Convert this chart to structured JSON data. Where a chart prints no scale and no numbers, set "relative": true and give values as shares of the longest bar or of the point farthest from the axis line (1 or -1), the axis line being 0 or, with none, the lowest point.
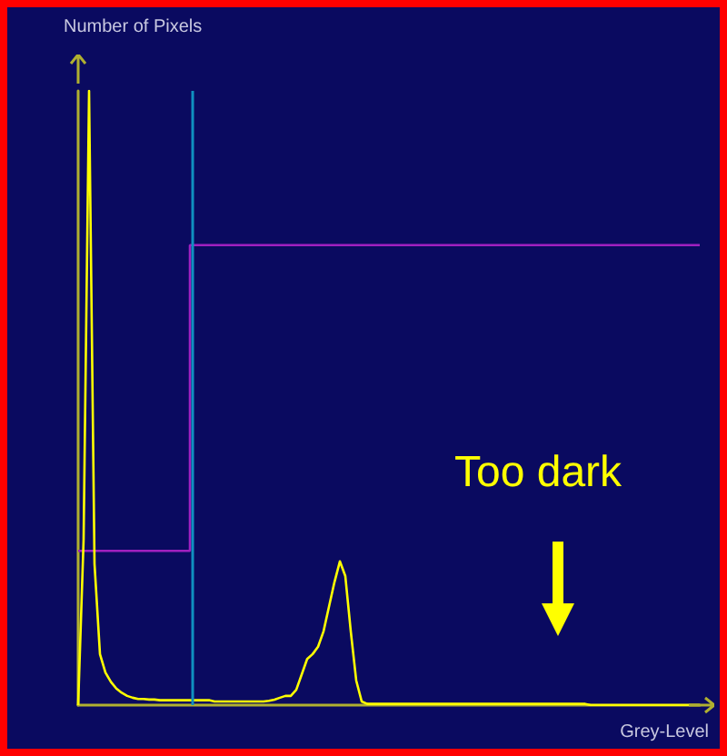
{
  "chart_data": {
    "type": "line",
    "relative": true,
    "xlabel": "Grey-Level",
    "ylabel": "Number of Pixels",
    "annotations": [
      "Too dark"
    ],
    "grid": false,
    "legend": false,
    "categories": [
      null,
      null,
      null,
      null,
      null,
      null,
      null,
      null,
      null,
      null,
      null,
      null,
      null,
      null,
      null,
      null,
      null,
      null,
      null,
      null,
      null,
      null,
      null,
      null,
      null,
      null,
      null,
      null,
      null,
      null,
      null,
      null,
      null,
      null,
      null,
      null,
      null,
      null,
      null,
      null,
      null,
      null,
      null,
      null,
      null,
      null,
      null,
      null,
      null,
      null,
      null,
      null,
      null,
      null,
      null,
      null,
      null,
      null,
      null,
      null,
      null,
      null,
      null,
      null,
      null,
      null,
      null,
      null,
      null,
      null,
      null,
      null,
      null,
      null,
      null,
      null,
      null,
      null,
      null,
      null,
      null,
      null,
      null,
      null,
      null,
      null,
      null,
      null,
      null,
      null,
      null,
      null,
      null,
      null,
      null,
      null,
      null,
      null,
      null,
      null,
      null,
      null,
      null,
      null,
      null,
      null,
      null,
      null,
      null,
      null,
      null,
      null,
      null,
      null,
      null
    ],
    "series": [
      {
        "color": "#ffff00",
        "values": [
          0,
          0.27,
          1,
          0.23,
          0.083,
          0.053,
          0.038,
          0.027,
          0.02,
          0.015,
          0.012,
          0.01,
          0.01,
          0.009,
          0.009,
          0.008,
          0.008,
          0.008,
          0.008,
          0.008,
          0.008,
          0.008,
          0.008,
          0.008,
          0.008,
          0.006,
          0.006,
          0.006,
          0.006,
          0.006,
          0.006,
          0.006,
          0.006,
          0.006,
          0.006,
          0.007,
          0.009,
          0.012,
          0.015,
          0.015,
          0.025,
          0.05,
          0.075,
          0.083,
          0.095,
          0.12,
          0.16,
          0.2,
          0.234,
          0.21,
          0.12,
          0.04,
          0.006,
          0.002,
          0.002,
          0.002,
          0.002,
          0.002,
          0.002,
          0.002,
          0.002,
          0.002,
          0.002,
          0.002,
          0.002,
          0.002,
          0.002,
          0.002,
          0.002,
          0.002,
          0.002,
          0.002,
          0.002,
          0.002,
          0.002,
          0.002,
          0.002,
          0.002,
          0.002,
          0.002,
          0.002,
          0.002,
          0.002,
          0.002,
          0.002,
          0.002,
          0.002,
          0.002,
          0.002,
          0.002,
          0.002,
          0.002,
          0.002,
          0.002,
          0,
          0,
          0,
          0,
          0,
          0,
          0,
          0,
          0,
          0,
          0,
          0,
          0,
          0,
          0,
          0,
          0,
          0,
          0,
          0,
          0
        ]
      },
      {
        "type": "step",
        "color": "#a020c0",
        "values": [
          0.251,
          0.251,
          0.251,
          0.251,
          0.251,
          0.251,
          0.251,
          0.251,
          0.251,
          0.251,
          0.251,
          0.251,
          0.251,
          0.251,
          0.251,
          0.251,
          0.251,
          0.251,
          0.251,
          0.251,
          0.251,
          0.749,
          0.749,
          0.749,
          0.749,
          0.749,
          0.749,
          0.749,
          0.749,
          0.749,
          0.749,
          0.749,
          0.749,
          0.749,
          0.749,
          0.749,
          0.749,
          0.749,
          0.749,
          0.749,
          0.749,
          0.749,
          0.749,
          0.749,
          0.749,
          0.749,
          0.749,
          0.749,
          0.749,
          0.749,
          0.749,
          0.749,
          0.749,
          0.749,
          0.749,
          0.749,
          0.749,
          0.749,
          0.749,
          0.749,
          0.749,
          0.749,
          0.749,
          0.749,
          0.749,
          0.749,
          0.749,
          0.749,
          0.749,
          0.749,
          0.749,
          0.749,
          0.749,
          0.749,
          0.749,
          0.749,
          0.749,
          0.749,
          0.749,
          0.749,
          0.749,
          0.749,
          0.749,
          0.749,
          0.749,
          0.749,
          0.749,
          0.749,
          0.749,
          0.749,
          0.749,
          0.749,
          0.749,
          0.749,
          0.749,
          0.749,
          0.749,
          0.749,
          0.749,
          0.749,
          0.749,
          0.749,
          0.749,
          0.749,
          0.749,
          0.749,
          0.749,
          0.749,
          0.749,
          0.749,
          0.749,
          0.749,
          0.749,
          0.749,
          0.749
        ]
      }
    ]
  }
}
